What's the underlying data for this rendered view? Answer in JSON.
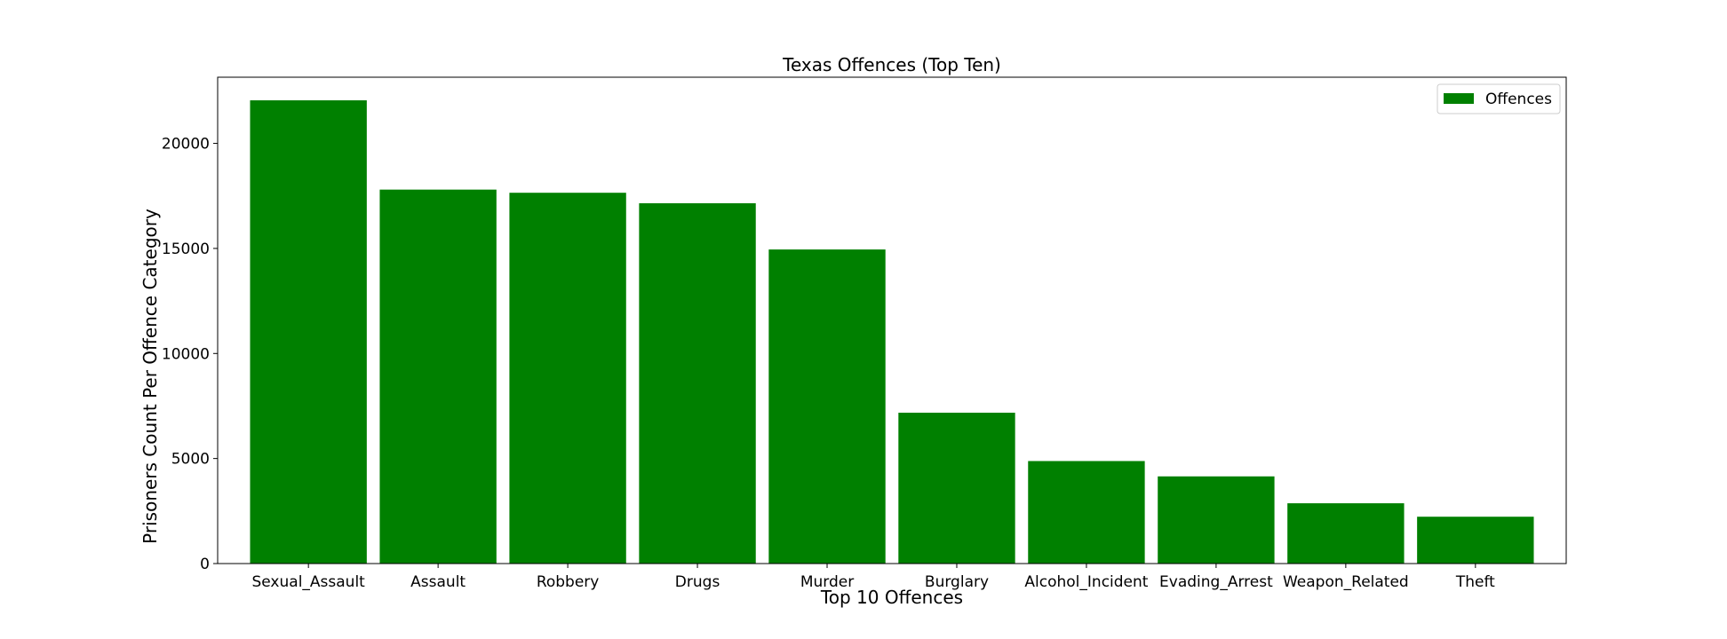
{
  "chart_data": {
    "type": "bar",
    "title": "Texas Offences (Top Ten)",
    "xlabel": "Top 10 Offences",
    "ylabel": "Prisoners Count Per Offence Category",
    "categories": [
      "Sexual_Assault",
      "Assault",
      "Robbery",
      "Drugs",
      "Murder",
      "Burglary",
      "Alcohol_Incident",
      "Evading_Arrest",
      "Weapon_Related",
      "Theft"
    ],
    "series": [
      {
        "name": "Offences",
        "color": "#008000",
        "values": [
          22050,
          17800,
          17650,
          17150,
          14950,
          7180,
          4880,
          4150,
          2870,
          2230
        ]
      }
    ],
    "yticks": [
      0,
      5000,
      10000,
      15000,
      20000
    ],
    "ylim": [
      0,
      23150
    ],
    "grid": false,
    "legend": "top-right"
  }
}
